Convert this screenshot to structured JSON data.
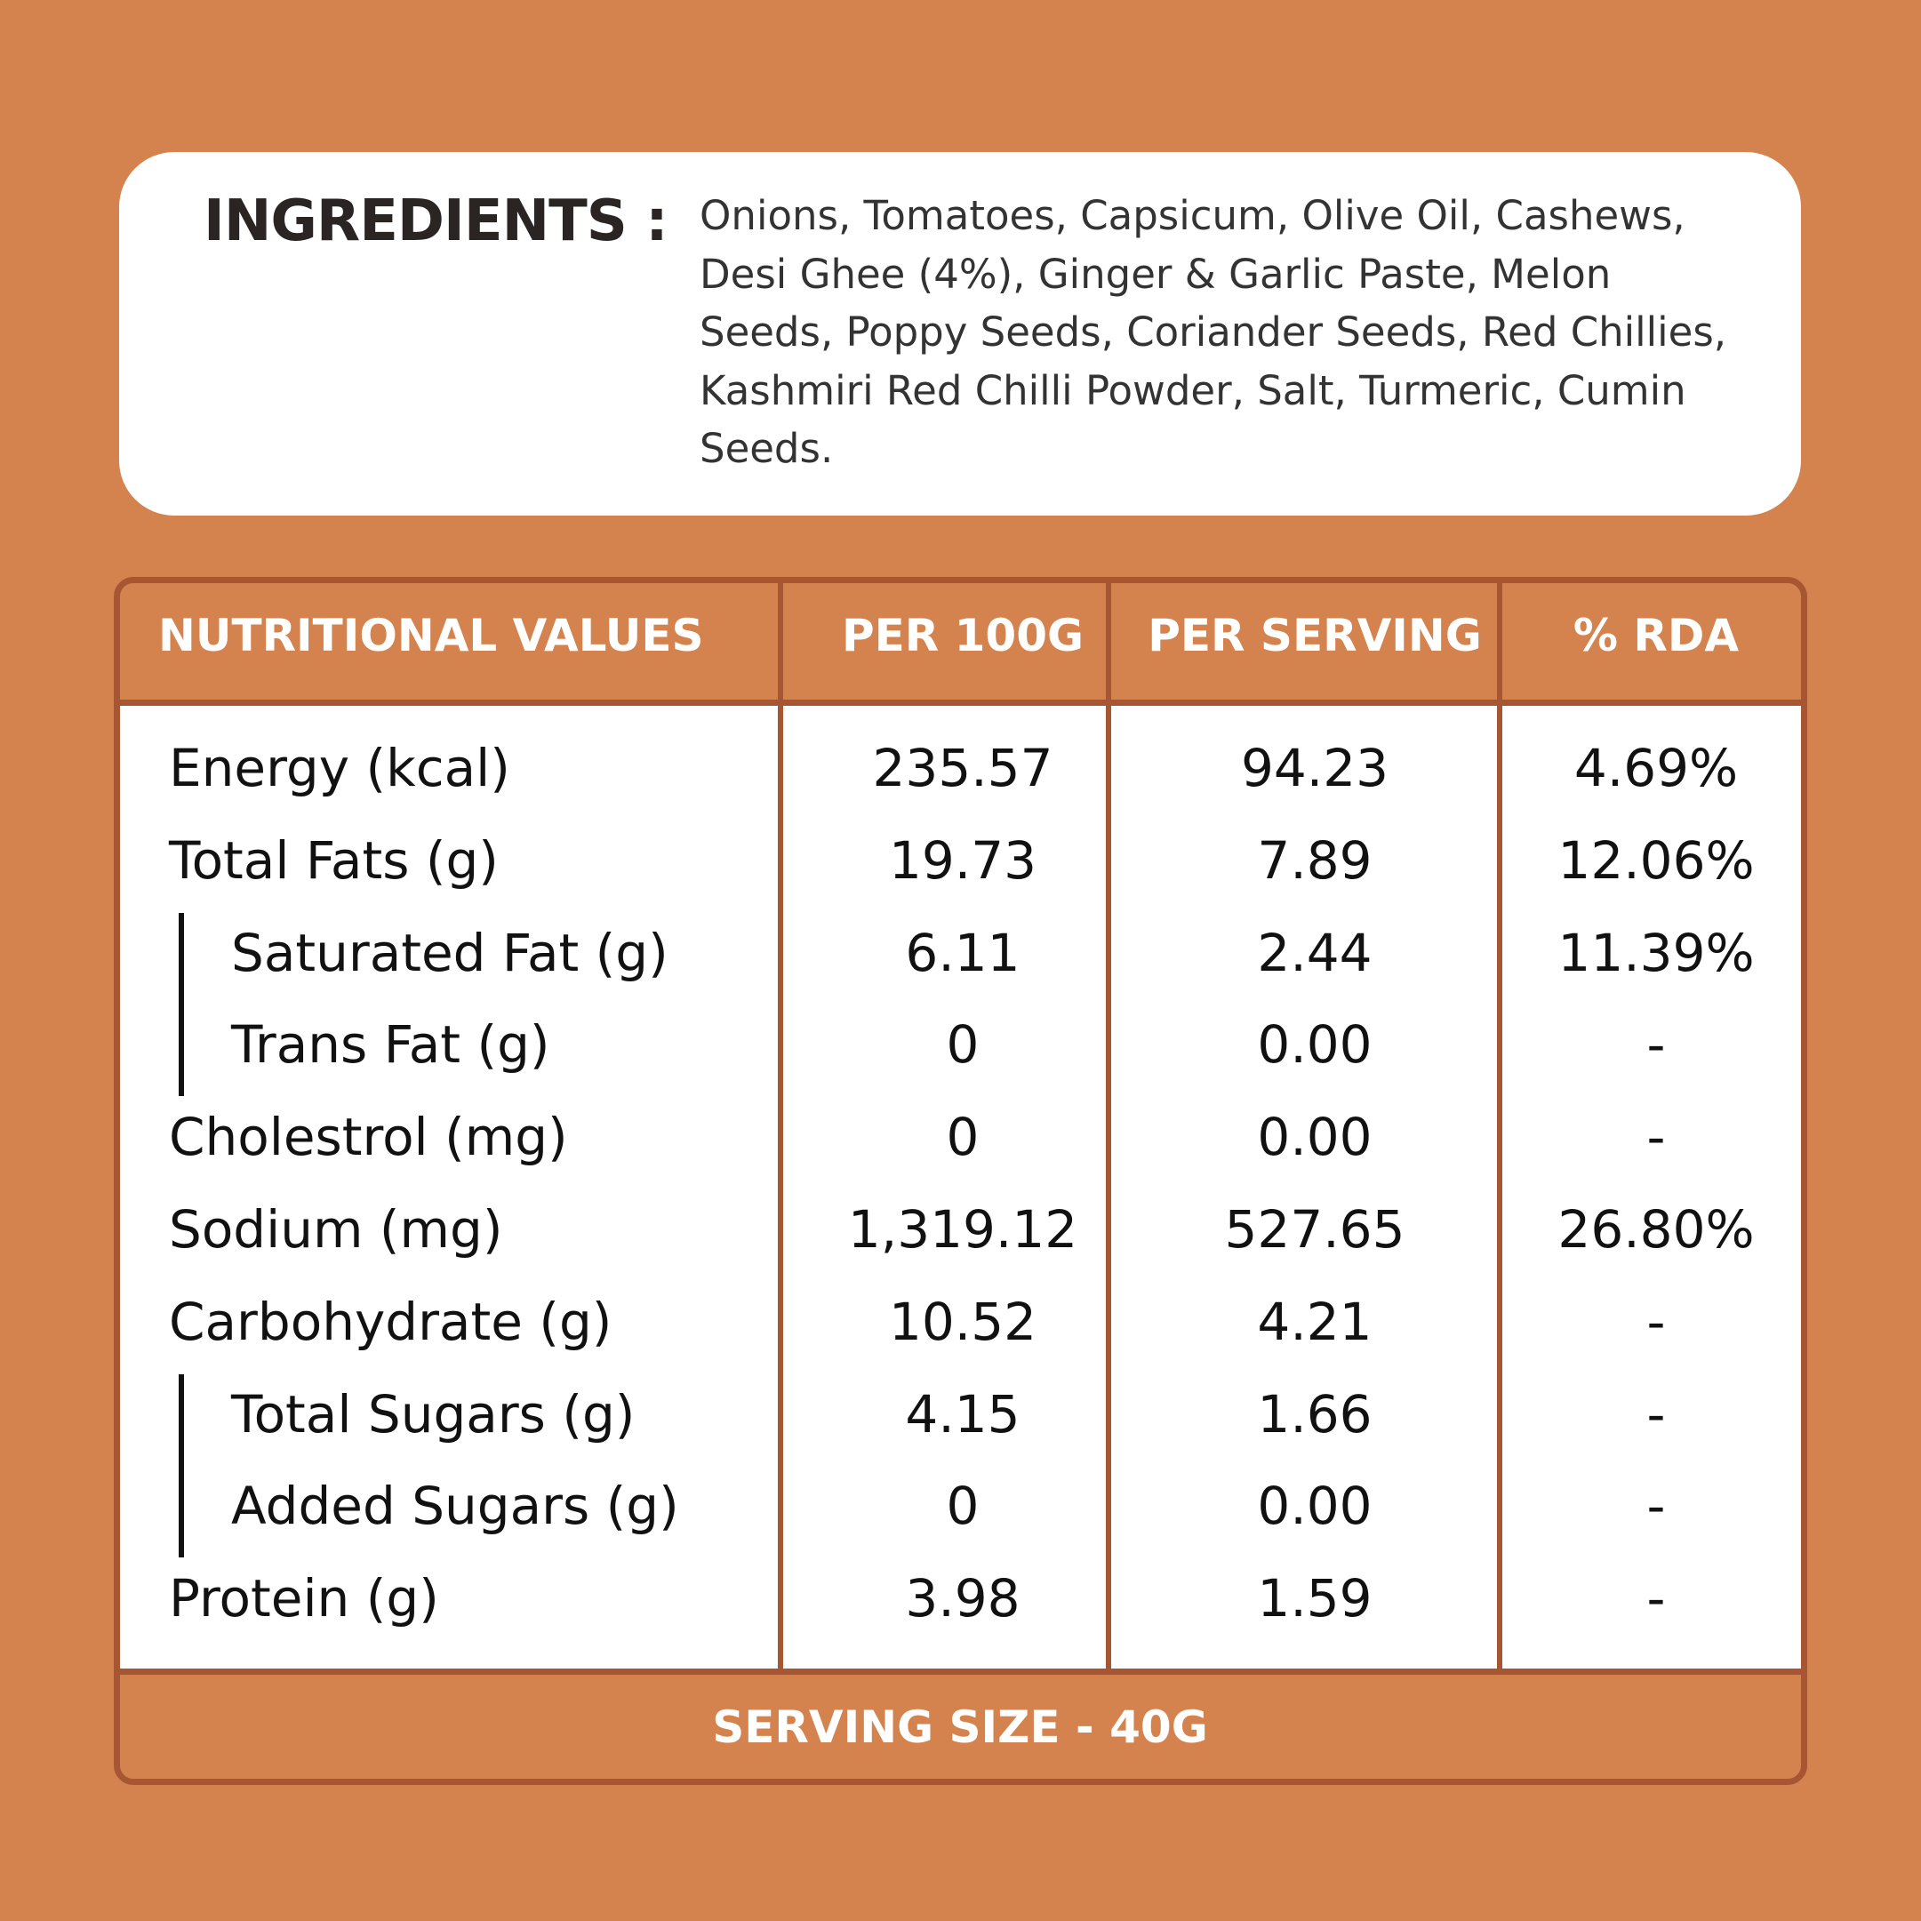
{
  "ingredients": {
    "title": "INGREDIENTS :",
    "text": "Onions, Tomatoes, Capsicum, Olive Oil, Cashews, Desi Ghee (4%), Ginger & Garlic Paste, Melon Seeds, Poppy Seeds, Coriander Seeds, Red Chillies, Kashmiri Red Chilli Powder, Salt, Turmeric, Cumin Seeds."
  },
  "table": {
    "header": [
      "NUTRITIONAL VALUES",
      "PER 100G",
      "PER SERVING",
      "% RDA"
    ],
    "rows": [
      {
        "cells": [
          "Energy (kcal)",
          "235.57",
          "94.23",
          "4.69%"
        ]
      },
      {
        "cells": [
          "Total Fats (g)",
          "19.73",
          "7.89",
          "12.06%"
        ]
      },
      {
        "cells": [
          "Saturated Fat (g)",
          "6.11",
          "2.44",
          "11.39%"
        ],
        "indented": true
      },
      {
        "cells": [
          "Trans Fat (g)",
          "0",
          "0.00",
          "-"
        ],
        "indented": true
      },
      {
        "cells": [
          "Cholestrol (mg)",
          "0",
          "0.00",
          "-"
        ]
      },
      {
        "cells": [
          "Sodium (mg)",
          "1,319.12",
          "527.65",
          "26.80%"
        ]
      },
      {
        "cells": [
          "Carbohydrate (g)",
          "10.52",
          "4.21",
          "-"
        ]
      },
      {
        "cells": [
          "Total Sugars (g)",
          "4.15",
          "1.66",
          "-"
        ],
        "indented": true
      },
      {
        "cells": [
          "Added Sugars  (g)",
          "0",
          "0.00",
          "-"
        ],
        "indented": true
      },
      {
        "cells": [
          "Protein (g)",
          "3.98",
          "1.59",
          "-"
        ]
      }
    ],
    "footer": "SERVING SIZE - 40G"
  }
}
